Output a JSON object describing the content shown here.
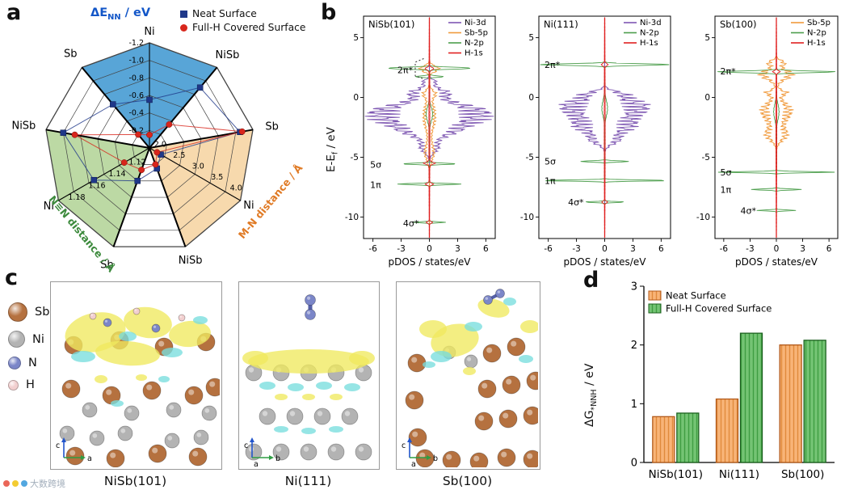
{
  "figure": {
    "labels": {
      "a": "a",
      "b": "b",
      "c": "c",
      "d": "d"
    },
    "watermark": "大数跨境"
  },
  "colors": {
    "neat": "#1f3889",
    "fullh": "#d8261c",
    "sector_blue": "#58a5d7",
    "sector_green": "#bcd9a4",
    "sector_orange": "#f7d9ad",
    "de_label": "#1256c8",
    "nn_label": "#3c8a3c",
    "mn_label": "#e07b26",
    "ni3d": "#7e57b2",
    "sb5p": "#f09a3c",
    "n2p": "#4c9e4c",
    "h1s": "#e02020",
    "bar_neat_fill": "#f8b478",
    "bar_neat_edge": "#b35a1a",
    "bar_full_fill": "#74c474",
    "bar_full_edge": "#1c611f",
    "sb_atom": "#b5713f",
    "ni_atom": "#b3b3b3",
    "n_atom": "#7b86c8",
    "h_atom": "#f2cfcf",
    "iso_pos": "#efe95f",
    "iso_neg": "#79dede"
  },
  "panel_a": {
    "title": {
      "pre": "ΔE",
      "sub": "NN",
      "post": " / eV"
    },
    "legend": [
      {
        "label": "Neat Surface"
      },
      {
        "label": "Full-H Covered Surface"
      }
    ],
    "chart_data": {
      "type": "radar",
      "rings": 6,
      "series_names": [
        "Neat Surface",
        "Full-H Covered Surface"
      ],
      "groups": [
        {
          "name": "ΔE_NN / eV",
          "sector": "blue",
          "axes": [
            "Sb",
            "Ni",
            "NiSb"
          ],
          "angles": [
            130,
            90,
            50
          ],
          "center_value": 0,
          "outer_value": -1.2,
          "ticks": [
            "-0.2",
            "-0.4",
            "-0.6",
            "-0.8",
            "-1.0",
            "-1.2"
          ],
          "neat": [
            -0.65,
            -0.55,
            -0.9
          ],
          "full_h": [
            -0.2,
            -0.15,
            -0.35
          ]
        },
        {
          "name": "M-N distance / Å",
          "sector": "orange",
          "axes": [
            "Sb",
            "Ni",
            "NiSb"
          ],
          "angles": [
            10,
            -30,
            -70
          ],
          "center_value": 1.8,
          "outer_value": 4.2,
          "ticks": [
            "2.0",
            "2.5",
            "3.0",
            "3.5",
            "4.0"
          ],
          "neat": [
            3.9,
            2.1,
            2.3
          ],
          "full_h": [
            3.95,
            2.0,
            2.2
          ]
        },
        {
          "name": "N≡N distance / Å",
          "sector": "green",
          "axes": [
            "Sb",
            "Ni",
            "NiSb"
          ],
          "angles": [
            -110,
            -150,
            -190
          ],
          "center_value": 1.1,
          "outer_value": 1.19,
          "ticks": [
            "1.12",
            "1.14",
            "1.16",
            "1.18"
          ],
          "neat": [
            1.13,
            1.155,
            1.175
          ],
          "full_h": [
            1.12,
            1.125,
            1.165
          ]
        }
      ]
    }
  },
  "panel_b": {
    "ylabel": {
      "pre": "E-E",
      "sub": "f",
      "post": " / eV"
    },
    "xlabel": "pDOS / states/eV",
    "xticks": [
      -6,
      -3,
      0,
      3,
      6
    ],
    "yticks": [
      5,
      0,
      -5,
      -10
    ],
    "xlim": [
      -7,
      7
    ],
    "ylim": [
      -11.8,
      6.8
    ],
    "subplots": [
      {
        "title": "NiSb(101)",
        "legend": [
          {
            "label": "Ni-3d",
            "color": "ni3d"
          },
          {
            "label": "Sb-5p",
            "color": "sb5p"
          },
          {
            "label": "N-2p",
            "color": "n2p"
          },
          {
            "label": "H-1s",
            "color": "h1s"
          }
        ],
        "annotations": [
          {
            "text": "2π*",
            "E": 2.3,
            "x": -3.4
          },
          {
            "text": "5σ",
            "E": -5.6,
            "x": -6.3
          },
          {
            "text": "1π",
            "E": -7.3,
            "x": -6.3
          },
          {
            "text": "4σ*",
            "E": -10.5,
            "x": -2.8
          }
        ],
        "brace": {
          "x": -1.5,
          "E1": 1.55,
          "E2": 3.2
        },
        "series": [
          {
            "color": "ni3d",
            "noise": 0.45,
            "seed": 1,
            "peaks": [
              [
                -1.3,
                1.0,
                5.2
              ],
              [
                -2.7,
                0.8,
                2.3
              ],
              [
                0.4,
                0.5,
                1.5
              ],
              [
                1.3,
                0.3,
                0.6
              ],
              [
                -4.2,
                0.6,
                0.8
              ]
            ]
          },
          {
            "color": "sb5p",
            "noise": 0.4,
            "seed": 2,
            "peaks": [
              [
                -1.6,
                1.6,
                0.55
              ],
              [
                2.4,
                0.35,
                0.9
              ],
              [
                -4.6,
                0.9,
                0.45
              ],
              [
                0.3,
                0.4,
                0.5
              ]
            ]
          },
          {
            "color": "n2p",
            "noise": 0.15,
            "seed": 3,
            "peaks": [
              [
                2.45,
                0.1,
                5.0
              ],
              [
                1.75,
                0.09,
                1.4
              ],
              [
                -5.55,
                0.07,
                3.2
              ],
              [
                -7.25,
                0.07,
                3.6
              ],
              [
                -10.45,
                0.06,
                1.7
              ],
              [
                -1.4,
                0.8,
                0.35
              ]
            ]
          },
          {
            "color": "h1s",
            "noise": 0.2,
            "seed": 4,
            "peaks": [
              [
                -2.5,
                9,
                0.05
              ],
              [
                -5.5,
                0.15,
                0.5
              ],
              [
                2.4,
                0.15,
                0.4
              ],
              [
                -7.25,
                0.12,
                0.35
              ],
              [
                -10.45,
                0.1,
                0.3
              ]
            ]
          }
        ]
      },
      {
        "title": "Ni(111)",
        "legend": [
          {
            "label": "Ni-3d",
            "color": "ni3d"
          },
          {
            "label": "N-2p",
            "color": "n2p"
          },
          {
            "label": "H-1s",
            "color": "h1s"
          }
        ],
        "annotations": [
          {
            "text": "2π*",
            "E": 2.75,
            "x": -6.4
          },
          {
            "text": "5σ",
            "E": -5.35,
            "x": -6.4
          },
          {
            "text": "1π",
            "E": -6.95,
            "x": -6.4
          },
          {
            "text": "4σ*",
            "E": -8.75,
            "x": -3.9
          }
        ],
        "series": [
          {
            "color": "ni3d",
            "noise": 0.55,
            "seed": 5,
            "peaks": [
              [
                -0.7,
                0.8,
                3.4
              ],
              [
                -2.2,
                1.0,
                2.6
              ],
              [
                0.3,
                0.35,
                1.2
              ],
              [
                -3.6,
                0.5,
                1.0
              ]
            ]
          },
          {
            "color": "n2p",
            "noise": 0.12,
            "seed": 6,
            "peaks": [
              [
                2.75,
                0.1,
                6.8
              ],
              [
                -5.35,
                0.07,
                2.8
              ],
              [
                -6.95,
                0.07,
                6.5
              ],
              [
                -8.75,
                0.06,
                2.0
              ],
              [
                -0.9,
                0.9,
                0.3
              ]
            ]
          },
          {
            "color": "h1s",
            "noise": 0.2,
            "seed": 7,
            "peaks": [
              [
                -2.5,
                9,
                0.05
              ],
              [
                2.75,
                0.12,
                0.35
              ],
              [
                -8.75,
                0.1,
                0.3
              ]
            ]
          }
        ]
      },
      {
        "title": "Sb(100)",
        "legend": [
          {
            "label": "Sb-5p",
            "color": "sb5p"
          },
          {
            "label": "N-2p",
            "color": "n2p"
          },
          {
            "label": "H-1s",
            "color": "h1s"
          }
        ],
        "annotations": [
          {
            "text": "2π*",
            "E": 2.2,
            "x": -6.4
          },
          {
            "text": "5σ",
            "E": -6.25,
            "x": -6.4
          },
          {
            "text": "1π",
            "E": -7.7,
            "x": -6.4
          },
          {
            "text": "4σ*",
            "E": -9.45,
            "x": -4.1
          }
        ],
        "series": [
          {
            "color": "sb5p",
            "noise": 0.5,
            "seed": 8,
            "peaks": [
              [
                -1.2,
                1.1,
                1.4
              ],
              [
                1.9,
                0.6,
                1.5
              ],
              [
                -3.1,
                0.7,
                1.0
              ],
              [
                0.4,
                0.3,
                0.9
              ],
              [
                2.9,
                0.3,
                0.8
              ]
            ]
          },
          {
            "color": "n2p",
            "noise": 0.12,
            "seed": 9,
            "peaks": [
              [
                2.15,
                0.1,
                6.8
              ],
              [
                -6.25,
                0.07,
                6.2
              ],
              [
                -7.7,
                0.07,
                2.6
              ],
              [
                -9.45,
                0.06,
                2.0
              ],
              [
                -1.2,
                0.9,
                0.3
              ]
            ]
          },
          {
            "color": "h1s",
            "noise": 0.2,
            "seed": 10,
            "peaks": [
              [
                -2.5,
                9,
                0.05
              ],
              [
                2.15,
                0.12,
                0.35
              ]
            ]
          }
        ]
      }
    ]
  },
  "panel_c": {
    "atom_legend": [
      {
        "label": "Sb",
        "color": "sb_atom",
        "size": 24
      },
      {
        "label": "Ni",
        "color": "ni_atom",
        "size": 21
      },
      {
        "label": "N",
        "color": "n_atom",
        "size": 16
      },
      {
        "label": "H",
        "color": "h_atom",
        "size": 13
      }
    ],
    "panels": [
      {
        "label": "NiSb(101)",
        "axes": [
          "c",
          "a"
        ]
      },
      {
        "label": "Ni(111)",
        "axes": [
          "c",
          "a",
          "b"
        ]
      },
      {
        "label": "Sb(100)",
        "axes": [
          "c",
          "a",
          "b"
        ]
      }
    ]
  },
  "panel_d": {
    "ylabel": {
      "pre": "ΔG",
      "sub": "*NNH",
      "post": " / eV"
    },
    "chart_data": {
      "type": "bar",
      "categories": [
        "NiSb(101)",
        "Ni(111)",
        "Sb(100)"
      ],
      "series": [
        {
          "name": "Neat Surface",
          "values": [
            0.78,
            1.08,
            2.0
          ]
        },
        {
          "name": "Full-H Covered Surface",
          "values": [
            0.84,
            2.2,
            2.08
          ]
        }
      ],
      "ylim": [
        0,
        3
      ],
      "yticks": [
        0,
        1,
        2,
        3
      ]
    }
  }
}
